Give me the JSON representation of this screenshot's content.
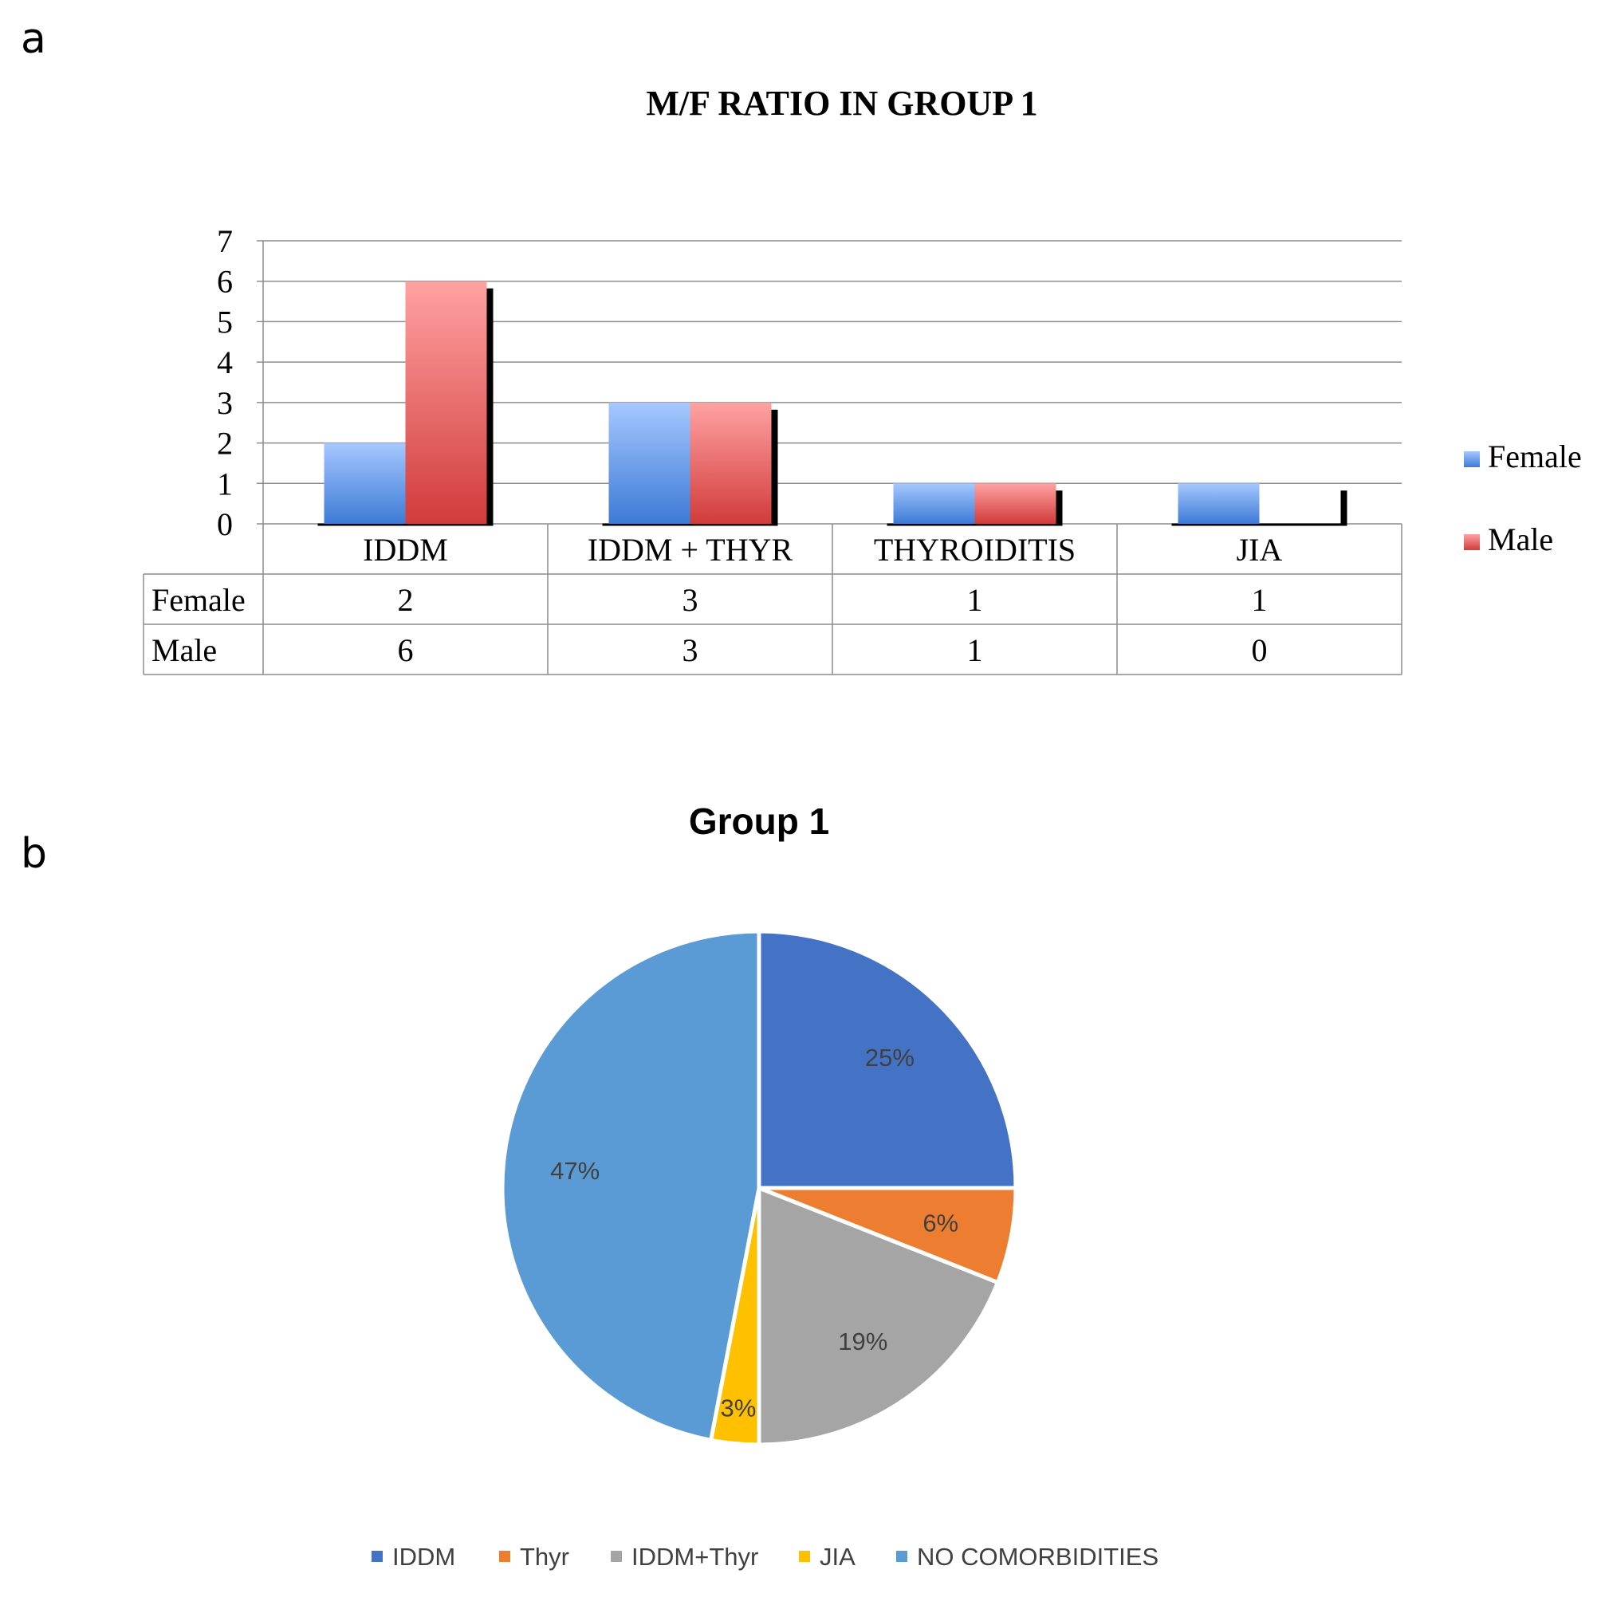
{
  "panel_labels": {
    "a": "a",
    "b": "b"
  },
  "colors": {
    "female_top": "#a6c8ff",
    "female_bottom": "#3d7ad6",
    "male_top": "#ffa2a2",
    "male_bottom": "#d23b3b",
    "grid": "#8c8c8c",
    "axis_text": "#000000",
    "pie_label": "#404040",
    "IDDM": "#4472c4",
    "Thyr": "#ed7d31",
    "IDDM+Thyr": "#a5a5a5",
    "JIA": "#ffc000",
    "NO COMORBIDITIES": "#5b9bd5"
  },
  "chart_data": [
    {
      "type": "bar",
      "title": "M/F  RATIO IN GROUP 1",
      "categories": [
        "IDDM",
        "IDDM + THYR",
        "THYROIDITIS",
        "JIA"
      ],
      "series": [
        {
          "name": "Female",
          "values": [
            2,
            3,
            1,
            1
          ]
        },
        {
          "name": "Male",
          "values": [
            6,
            3,
            1,
            0
          ]
        }
      ],
      "yticks": [
        "0",
        "1",
        "2",
        "3",
        "4",
        "5",
        "6",
        "7"
      ],
      "ylim": [
        0,
        7
      ],
      "xlabel": "",
      "ylabel": "",
      "grid": true,
      "legend": "right",
      "data_table": true
    },
    {
      "type": "pie",
      "title": "Group 1",
      "labels": [
        "IDDM",
        "Thyr",
        "IDDM+Thyr",
        "JIA",
        "NO COMORBIDITIES"
      ],
      "values": [
        25,
        6,
        19,
        3,
        47
      ],
      "value_labels": [
        "25%",
        "6%",
        "19%",
        "3%",
        "47%"
      ],
      "legend": "bottom"
    }
  ]
}
